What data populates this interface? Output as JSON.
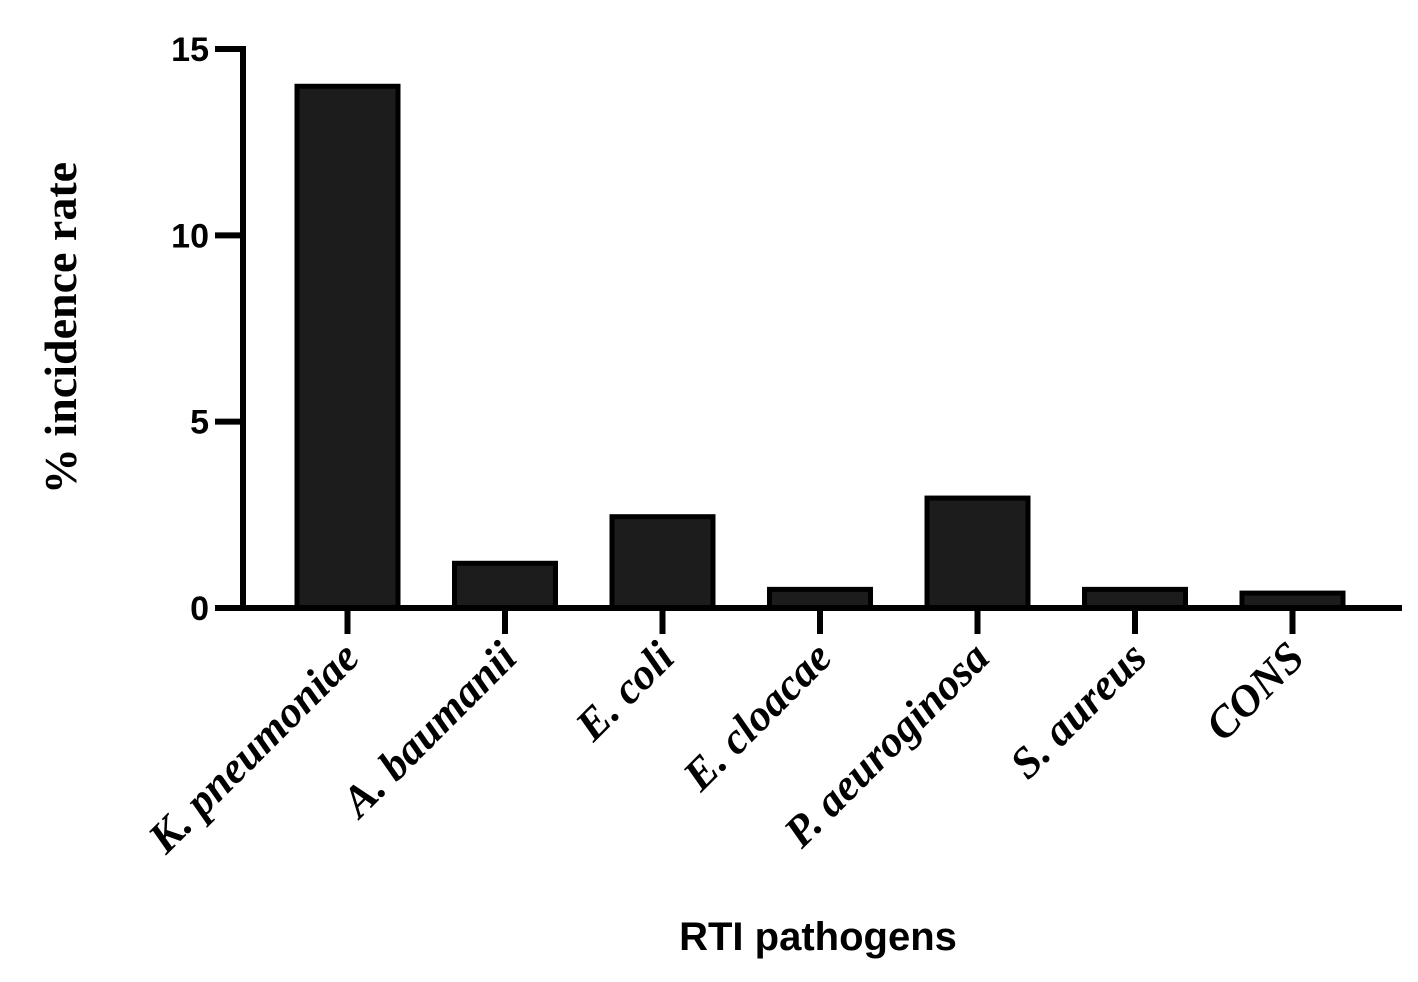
{
  "chart_data": {
    "type": "bar",
    "categories": [
      "K. pneumoniae",
      "A. baumanii",
      "E. coli",
      "E. cloacae",
      "P. aeuroginosa",
      "S. aureus",
      "CONS"
    ],
    "values": [
      14.0,
      1.2,
      2.45,
      0.5,
      2.95,
      0.5,
      0.4
    ],
    "xlabel": "RTI pathogens",
    "ylabel": "% incidence rate",
    "ylim": [
      0,
      15
    ],
    "yticks": [
      0,
      5,
      10,
      15
    ],
    "grid": false,
    "bar_color": "#1c1c1c",
    "edge_color": "#000000"
  }
}
